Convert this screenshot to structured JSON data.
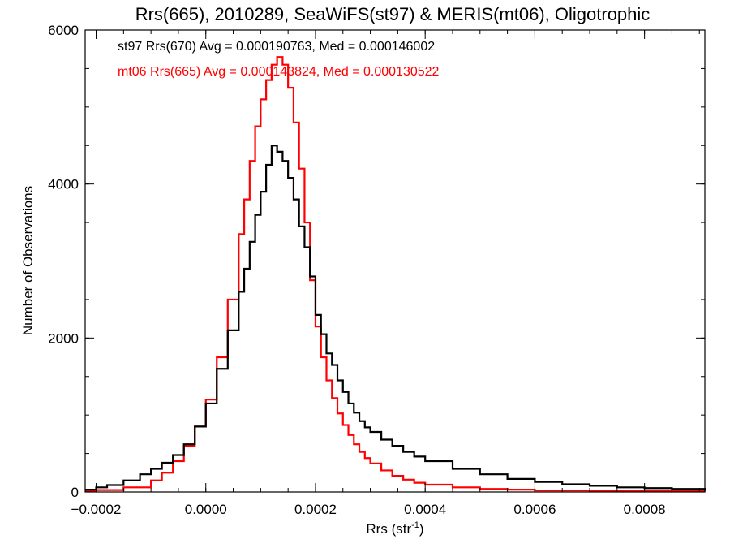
{
  "chart_data": {
    "type": "line",
    "step": true,
    "title": "Rrs(665), 2010289, SeaWiFS(st97) & MERIS(mt06), Oligotrophic",
    "xlabel_base": "Rrs (str",
    "xlabel_sup": "-1",
    "xlabel_end": ")",
    "ylabel": "Number of Observations",
    "xlim": [
      -0.00022,
      0.00091
    ],
    "ylim": [
      0,
      6000
    ],
    "x_ticks": [
      -0.0002,
      0.0,
      0.0002,
      0.0004,
      0.0006,
      0.0008
    ],
    "x_tick_labels": [
      "−0.0002",
      "0.0000",
      "0.0002",
      "0.0004",
      "0.0006",
      "0.0008"
    ],
    "y_ticks": [
      0,
      2000,
      4000,
      6000
    ],
    "y_tick_labels": [
      "0",
      "2000",
      "4000",
      "6000"
    ],
    "legend_placement": "top-left",
    "series": [
      {
        "name": "st97 Rrs(670) Avg = 0.000190763, Med = 0.000146002",
        "color": "#000000",
        "points": [
          [
            -0.00022,
            30
          ],
          [
            -0.0002,
            60
          ],
          [
            -0.00018,
            90
          ],
          [
            -0.00015,
            150
          ],
          [
            -0.00012,
            230
          ],
          [
            -0.0001,
            300
          ],
          [
            -8e-05,
            380
          ],
          [
            -6e-05,
            480
          ],
          [
            -4e-05,
            620
          ],
          [
            -2e-05,
            850
          ],
          [
            0.0,
            1150
          ],
          [
            2e-05,
            1600
          ],
          [
            4e-05,
            2100
          ],
          [
            6e-05,
            2600
          ],
          [
            7e-05,
            2900
          ],
          [
            8e-05,
            3250
          ],
          [
            9e-05,
            3600
          ],
          [
            0.0001,
            3900
          ],
          [
            0.00011,
            4250
          ],
          [
            0.00012,
            4500
          ],
          [
            0.00013,
            4420
          ],
          [
            0.00014,
            4300
          ],
          [
            0.00015,
            4080
          ],
          [
            0.00016,
            3800
          ],
          [
            0.00017,
            3450
          ],
          [
            0.00018,
            3180
          ],
          [
            0.00019,
            2800
          ],
          [
            0.0002,
            2300
          ],
          [
            0.00021,
            2050
          ],
          [
            0.00022,
            1800
          ],
          [
            0.00023,
            1650
          ],
          [
            0.00024,
            1450
          ],
          [
            0.00025,
            1300
          ],
          [
            0.00026,
            1150
          ],
          [
            0.00027,
            1030
          ],
          [
            0.00028,
            920
          ],
          [
            0.00029,
            840
          ],
          [
            0.0003,
            780
          ],
          [
            0.00032,
            680
          ],
          [
            0.00034,
            600
          ],
          [
            0.00036,
            520
          ],
          [
            0.00038,
            460
          ],
          [
            0.0004,
            400
          ],
          [
            0.00045,
            300
          ],
          [
            0.0005,
            230
          ],
          [
            0.00055,
            170
          ],
          [
            0.0006,
            130
          ],
          [
            0.00065,
            100
          ],
          [
            0.0007,
            80
          ],
          [
            0.00075,
            60
          ],
          [
            0.0008,
            50
          ],
          [
            0.00085,
            40
          ],
          [
            0.00091,
            30
          ]
        ]
      },
      {
        "name": "mt06 Rrs(665) Avg = 0.000143824, Med = 0.000130522",
        "color": "#ff0000",
        "points": [
          [
            -0.00022,
            15
          ],
          [
            -0.0002,
            25
          ],
          [
            -0.00015,
            60
          ],
          [
            -0.0001,
            150
          ],
          [
            -8e-05,
            250
          ],
          [
            -6e-05,
            400
          ],
          [
            -4e-05,
            600
          ],
          [
            -2e-05,
            850
          ],
          [
            0.0,
            1200
          ],
          [
            2e-05,
            1750
          ],
          [
            4e-05,
            2500
          ],
          [
            6e-05,
            3350
          ],
          [
            7e-05,
            3800
          ],
          [
            8e-05,
            4300
          ],
          [
            9e-05,
            4750
          ],
          [
            0.0001,
            5100
          ],
          [
            0.00011,
            5350
          ],
          [
            0.00012,
            5550
          ],
          [
            0.00013,
            5650
          ],
          [
            0.00014,
            5550
          ],
          [
            0.00015,
            5250
          ],
          [
            0.00016,
            4800
          ],
          [
            0.00017,
            4200
          ],
          [
            0.00018,
            3500
          ],
          [
            0.00019,
            2750
          ],
          [
            0.0002,
            2150
          ],
          [
            0.00021,
            1750
          ],
          [
            0.00022,
            1450
          ],
          [
            0.00023,
            1220
          ],
          [
            0.00024,
            1020
          ],
          [
            0.00025,
            870
          ],
          [
            0.00026,
            740
          ],
          [
            0.00027,
            620
          ],
          [
            0.00028,
            520
          ],
          [
            0.00029,
            440
          ],
          [
            0.0003,
            370
          ],
          [
            0.00032,
            280
          ],
          [
            0.00034,
            210
          ],
          [
            0.00036,
            160
          ],
          [
            0.00038,
            120
          ],
          [
            0.0004,
            95
          ],
          [
            0.00045,
            60
          ],
          [
            0.0005,
            40
          ],
          [
            0.00055,
            30
          ],
          [
            0.0006,
            20
          ],
          [
            0.0007,
            15
          ],
          [
            0.0008,
            10
          ],
          [
            0.00091,
            8
          ]
        ]
      }
    ]
  }
}
